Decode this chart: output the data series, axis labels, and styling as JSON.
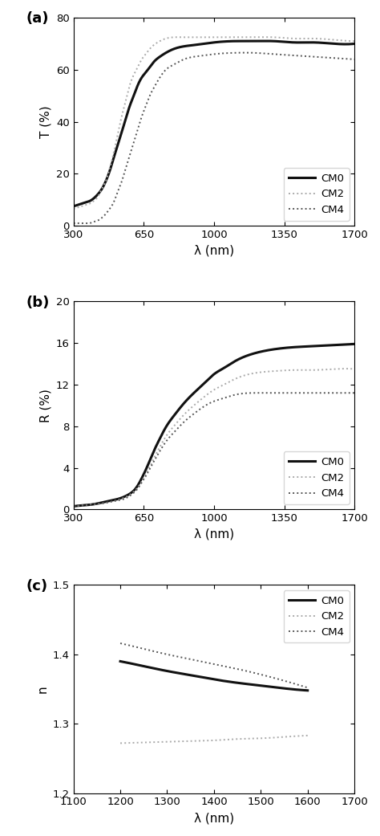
{
  "panel_a": {
    "label": "(a)",
    "ylabel": "T (%)",
    "xlabel": "λ (nm)",
    "xlim": [
      300,
      1700
    ],
    "ylim": [
      0,
      80
    ],
    "xticks": [
      300,
      650,
      1000,
      1350,
      1700
    ],
    "yticks": [
      0,
      20,
      40,
      60,
      80
    ],
    "CM0": {
      "x": [
        300,
        320,
        340,
        360,
        380,
        400,
        420,
        440,
        460,
        480,
        500,
        520,
        540,
        560,
        580,
        600,
        620,
        640,
        660,
        680,
        700,
        730,
        760,
        800,
        850,
        900,
        950,
        1000,
        1100,
        1200,
        1300,
        1400,
        1500,
        1600,
        1700
      ],
      "y": [
        7.5,
        8.0,
        8.5,
        9.0,
        9.5,
        10.5,
        12,
        14,
        17,
        21,
        26,
        31,
        36,
        41,
        46,
        50,
        54,
        57,
        59,
        61,
        63,
        65,
        66.5,
        68,
        69,
        69.5,
        70,
        70.5,
        71,
        71,
        71,
        70.5,
        70.5,
        70,
        70
      ]
    },
    "CM2": {
      "x": [
        300,
        320,
        340,
        360,
        380,
        400,
        420,
        440,
        460,
        480,
        500,
        520,
        540,
        560,
        580,
        600,
        620,
        640,
        660,
        680,
        700,
        730,
        760,
        800,
        850,
        900,
        950,
        1000,
        1100,
        1200,
        1300,
        1400,
        1500,
        1600,
        1700
      ],
      "y": [
        6.5,
        7.0,
        7.5,
        8.0,
        8.5,
        9.5,
        11,
        14,
        17,
        22,
        28,
        35,
        42,
        48,
        54,
        58,
        61,
        64,
        66,
        68,
        69.5,
        71,
        72,
        72.5,
        72.5,
        72.5,
        72.5,
        72.5,
        72.5,
        72.5,
        72.5,
        72,
        72,
        71.5,
        71
      ]
    },
    "CM4": {
      "x": [
        300,
        320,
        340,
        360,
        380,
        400,
        420,
        440,
        460,
        480,
        500,
        520,
        540,
        560,
        580,
        600,
        620,
        640,
        660,
        680,
        700,
        730,
        760,
        800,
        850,
        900,
        950,
        1000,
        1100,
        1200,
        1300,
        1400,
        1500,
        1600,
        1700
      ],
      "y": [
        1,
        1,
        1,
        1,
        1,
        1.5,
        2,
        3,
        4.5,
        6.5,
        9,
        13,
        17,
        22,
        27,
        32,
        37,
        42,
        46,
        50,
        53,
        57,
        60,
        62,
        64,
        65,
        65.5,
        66,
        66.5,
        66.5,
        66,
        65.5,
        65,
        64.5,
        64
      ]
    }
  },
  "panel_b": {
    "label": "(b)",
    "ylabel": "R (%)",
    "xlabel": "λ (nm)",
    "xlim": [
      300,
      1700
    ],
    "ylim": [
      0,
      20
    ],
    "xticks": [
      300,
      650,
      1000,
      1350,
      1700
    ],
    "yticks": [
      0,
      4,
      8,
      12,
      16,
      20
    ],
    "CM0": {
      "x": [
        300,
        350,
        400,
        450,
        500,
        550,
        580,
        600,
        620,
        640,
        660,
        680,
        700,
        730,
        760,
        800,
        850,
        900,
        950,
        1000,
        1050,
        1100,
        1200,
        1300,
        1400,
        1500,
        1600,
        1700
      ],
      "y": [
        0.3,
        0.4,
        0.5,
        0.7,
        0.9,
        1.2,
        1.5,
        1.8,
        2.3,
        3.0,
        3.8,
        4.7,
        5.6,
        6.8,
        7.9,
        9.0,
        10.2,
        11.2,
        12.1,
        13.0,
        13.6,
        14.2,
        15.0,
        15.4,
        15.6,
        15.7,
        15.8,
        15.9
      ]
    },
    "CM2": {
      "x": [
        300,
        350,
        400,
        450,
        500,
        550,
        580,
        600,
        620,
        640,
        660,
        680,
        700,
        730,
        760,
        800,
        850,
        900,
        950,
        1000,
        1050,
        1100,
        1200,
        1300,
        1400,
        1500,
        1600,
        1700
      ],
      "y": [
        0.3,
        0.4,
        0.5,
        0.6,
        0.8,
        1.1,
        1.4,
        1.7,
        2.1,
        2.7,
        3.4,
        4.1,
        4.9,
        6.0,
        7.0,
        8.0,
        9.1,
        10.0,
        10.8,
        11.5,
        12.0,
        12.5,
        13.1,
        13.3,
        13.4,
        13.4,
        13.5,
        13.5
      ]
    },
    "CM4": {
      "x": [
        300,
        350,
        400,
        450,
        500,
        550,
        580,
        600,
        620,
        640,
        660,
        680,
        700,
        730,
        760,
        800,
        850,
        900,
        950,
        1000,
        1050,
        1100,
        1200,
        1300,
        1400,
        1500,
        1600,
        1700
      ],
      "y": [
        0.3,
        0.4,
        0.5,
        0.6,
        0.8,
        1.0,
        1.3,
        1.6,
        2.0,
        2.6,
        3.2,
        3.9,
        4.6,
        5.6,
        6.5,
        7.4,
        8.4,
        9.2,
        9.9,
        10.4,
        10.7,
        11.0,
        11.2,
        11.2,
        11.2,
        11.2,
        11.2,
        11.2
      ]
    }
  },
  "panel_c": {
    "label": "(c)",
    "ylabel": "n",
    "xlabel": "λ (nm)",
    "xlim": [
      1100,
      1700
    ],
    "ylim": [
      1.2,
      1.5
    ],
    "xticks": [
      1100,
      1200,
      1300,
      1400,
      1500,
      1600,
      1700
    ],
    "yticks": [
      1.2,
      1.3,
      1.4,
      1.5
    ],
    "CM0": {
      "x": [
        1200,
        1250,
        1300,
        1350,
        1400,
        1450,
        1500,
        1550,
        1600
      ],
      "y": [
        1.39,
        1.383,
        1.376,
        1.37,
        1.364,
        1.359,
        1.355,
        1.351,
        1.348
      ]
    },
    "CM2": {
      "x": [
        1200,
        1250,
        1300,
        1350,
        1400,
        1450,
        1500,
        1550,
        1600
      ],
      "y": [
        1.272,
        1.273,
        1.274,
        1.275,
        1.276,
        1.278,
        1.279,
        1.281,
        1.283
      ]
    },
    "CM4": {
      "x": [
        1200,
        1250,
        1300,
        1350,
        1400,
        1450,
        1500,
        1550,
        1600
      ],
      "y": [
        1.416,
        1.408,
        1.4,
        1.393,
        1.386,
        1.379,
        1.371,
        1.362,
        1.352
      ]
    }
  },
  "CM0_color": "#111111",
  "CM2_color": "#aaaaaa",
  "CM4_color": "#555555",
  "lw_CM0": 2.2,
  "lw_CM2": 1.4,
  "lw_CM4": 1.4,
  "ls_CM0": "solid",
  "ls_CM2": "dotted",
  "ls_CM4": "dotted"
}
